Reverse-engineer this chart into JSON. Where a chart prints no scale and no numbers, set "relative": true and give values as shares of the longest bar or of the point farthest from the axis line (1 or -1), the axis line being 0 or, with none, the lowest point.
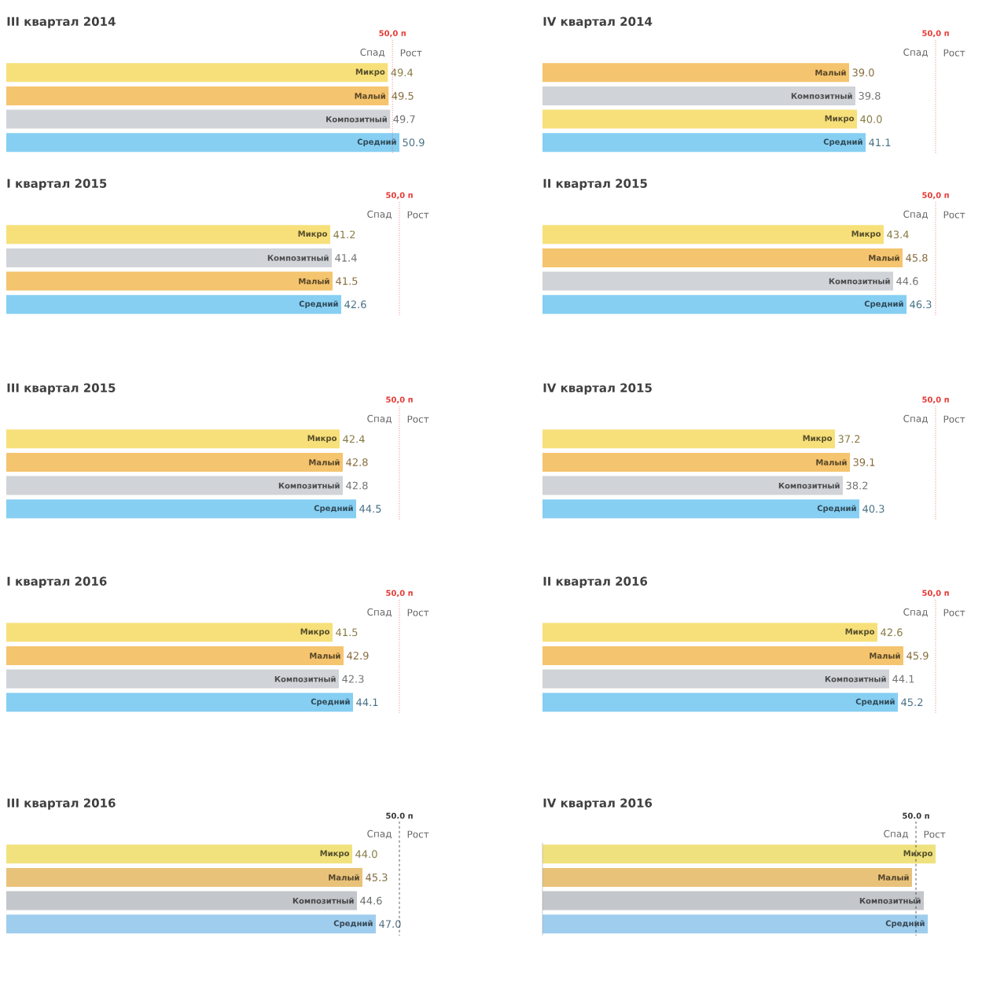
{
  "chart_data": [
    {
      "type": "bar",
      "orientation": "horizontal",
      "title": "III квартал 2014",
      "categories": [
        "Микро",
        "Малый",
        "Композитный",
        "Средний"
      ],
      "values": [
        49.4,
        49.5,
        49.7,
        50.9
      ],
      "value_labels": [
        "49.4",
        "49.5",
        "49.7",
        "50.9"
      ],
      "colors": [
        "#f7e07a",
        "#f5c46e",
        "#d0d3d7",
        "#86cff3"
      ],
      "ref_lines": [
        {
          "axis": "x",
          "value": 50,
          "label": "50,0 п",
          "color": "#e53935",
          "line_style": "dotted"
        }
      ],
      "annotations": [
        "Спад",
        "Рост"
      ]
    },
    {
      "type": "bar",
      "orientation": "horizontal",
      "title": "IV квартал 2014",
      "categories": [
        "Малый",
        "Композитный",
        "Микро",
        "Средний"
      ],
      "values": [
        39.0,
        39.8,
        40.0,
        41.1
      ],
      "value_labels": [
        "39.0",
        "39.8",
        "40.0",
        "41.1"
      ],
      "colors": [
        "#f5c46e",
        "#d0d3d7",
        "#f7e07a",
        "#86cff3"
      ],
      "ref_lines": [
        {
          "axis": "x",
          "value": 50,
          "label": "50,0 п",
          "color": "#e53935",
          "line_style": "dotted"
        }
      ],
      "annotations": [
        "Спад",
        "Рост"
      ]
    },
    {
      "type": "bar",
      "orientation": "horizontal",
      "title": "I квартал 2015",
      "categories": [
        "Микро",
        "Композитный",
        "Малый",
        "Средний"
      ],
      "values": [
        41.2,
        41.4,
        41.5,
        42.6
      ],
      "value_labels": [
        "41.2",
        "41.4",
        "41.5",
        "42.6"
      ],
      "colors": [
        "#f7e07a",
        "#d0d3d7",
        "#f5c46e",
        "#86cff3"
      ],
      "ref_lines": [
        {
          "axis": "x",
          "value": 50,
          "label": "50,0 п",
          "color": "#e53935",
          "line_style": "dotted"
        }
      ],
      "annotations": [
        "Спад",
        "Рост"
      ]
    },
    {
      "type": "bar",
      "orientation": "horizontal",
      "title": "II квартал 2015",
      "categories": [
        "Микро",
        "Малый",
        "Композитный",
        "Средний"
      ],
      "values": [
        43.4,
        45.8,
        44.6,
        46.3
      ],
      "value_labels": [
        "43.4",
        "45.8",
        "44.6",
        "46.3"
      ],
      "colors": [
        "#f7e07a",
        "#f5c46e",
        "#d0d3d7",
        "#86cff3"
      ],
      "ref_lines": [
        {
          "axis": "x",
          "value": 50,
          "label": "50,0 п",
          "color": "#e53935",
          "line_style": "dotted"
        }
      ],
      "annotations": [
        "Спад",
        "Рост"
      ]
    },
    {
      "type": "bar",
      "orientation": "horizontal",
      "title": "III квартал 2015",
      "categories": [
        "Микро",
        "Малый",
        "Композитный",
        "Средний"
      ],
      "values": [
        42.4,
        42.8,
        42.8,
        44.5
      ],
      "value_labels": [
        "42.4",
        "42.8",
        "42.8",
        "44.5"
      ],
      "colors": [
        "#f7e07a",
        "#f5c46e",
        "#d0d3d7",
        "#86cff3"
      ],
      "ref_lines": [
        {
          "axis": "x",
          "value": 50,
          "label": "50,0 п",
          "color": "#e53935",
          "line_style": "dotted"
        }
      ],
      "annotations": [
        "Спад",
        "Рост"
      ]
    },
    {
      "type": "bar",
      "orientation": "horizontal",
      "title": "IV квартал 2015",
      "categories": [
        "Микро",
        "Малый",
        "Композитный",
        "Средний"
      ],
      "values": [
        37.2,
        39.1,
        38.2,
        40.3
      ],
      "value_labels": [
        "37.2",
        "39.1",
        "38.2",
        "40.3"
      ],
      "colors": [
        "#f7e07a",
        "#f5c46e",
        "#d0d3d7",
        "#86cff3"
      ],
      "ref_lines": [
        {
          "axis": "x",
          "value": 50,
          "label": "50,0 п",
          "color": "#e53935",
          "line_style": "dotted"
        }
      ],
      "annotations": [
        "Спад",
        "Рост"
      ]
    },
    {
      "type": "bar",
      "orientation": "horizontal",
      "title": "I квартал 2016",
      "categories": [
        "Микро",
        "Малый",
        "Композитный",
        "Средний"
      ],
      "values": [
        41.5,
        42.9,
        42.3,
        44.1
      ],
      "value_labels": [
        "41.5",
        "42.9",
        "42.3",
        "44.1"
      ],
      "colors": [
        "#f7e07a",
        "#f5c46e",
        "#d0d3d7",
        "#86cff3"
      ],
      "ref_lines": [
        {
          "axis": "x",
          "value": 50,
          "label": "50,0 п",
          "color": "#e53935",
          "line_style": "dotted"
        }
      ],
      "annotations": [
        "Спад",
        "Рост"
      ]
    },
    {
      "type": "bar",
      "orientation": "horizontal",
      "title": "II квартал 2016",
      "categories": [
        "Микро",
        "Малый",
        "Композитный",
        "Средний"
      ],
      "values": [
        42.6,
        45.9,
        44.1,
        45.2
      ],
      "value_labels": [
        "42.6",
        "45.9",
        "44.1",
        "45.2"
      ],
      "colors": [
        "#f7e07a",
        "#f5c46e",
        "#d0d3d7",
        "#86cff3"
      ],
      "ref_lines": [
        {
          "axis": "x",
          "value": 50,
          "label": "50,0 п",
          "color": "#e53935",
          "line_style": "dotted"
        }
      ],
      "annotations": [
        "Спад",
        "Рост"
      ]
    },
    {
      "type": "bar",
      "orientation": "horizontal",
      "title": "III квартал 2016",
      "categories": [
        "Микро",
        "Малый",
        "Композитный",
        "Средний"
      ],
      "values": [
        44.0,
        45.3,
        44.6,
        47.0
      ],
      "value_labels": [
        "44.0",
        "45.3",
        "44.6",
        "47.0"
      ],
      "colors": [
        "#f1e27e",
        "#e9c27a",
        "#c3c6cb",
        "#9fcdee"
      ],
      "ref_lines": [
        {
          "axis": "x",
          "value": 50,
          "label": "50.0 п",
          "color": "#333333",
          "line_style": "dashed"
        }
      ],
      "annotations": [
        "Спад",
        "Рост"
      ]
    },
    {
      "type": "bar",
      "orientation": "horizontal",
      "relative": true,
      "title": "IV квартал 2016",
      "categories": [
        "Микро",
        "Малый",
        "Композитный",
        "Средний"
      ],
      "values": [
        1,
        0.94,
        0.97,
        0.98
      ],
      "colors": [
        "#efe27e",
        "#e9c27a",
        "#c3c6cb",
        "#9fcdee"
      ],
      "ref_lines": [
        {
          "axis": "x",
          "value": 0.95,
          "label": "50.0 п",
          "color": "#333333",
          "line_style": "dashed"
        }
      ],
      "annotations": [
        "Спад",
        "Рост"
      ]
    }
  ]
}
